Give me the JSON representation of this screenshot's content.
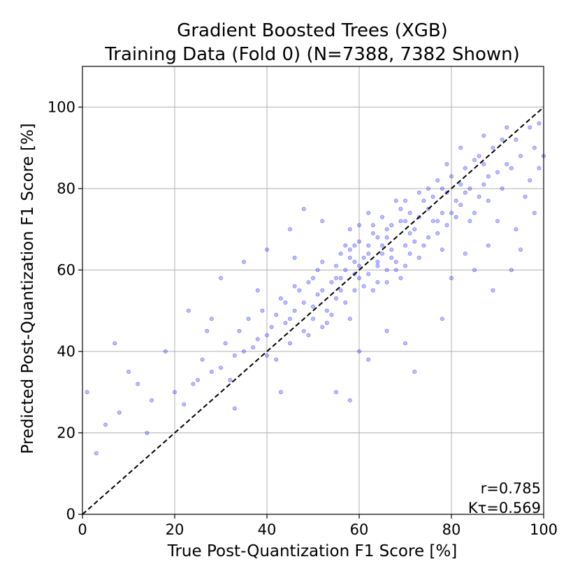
{
  "chart_data": {
    "type": "scatter",
    "title": "Gradient Boosted Trees (XGB)",
    "subtitle": "Training Data (Fold 0) (N=7388, 7382 Shown)",
    "xlabel": "True Post-Quantization F1 Score [%]",
    "ylabel": "Predicted Post-Quantization F1 Score [%]",
    "xlim": [
      0,
      100
    ],
    "ylim": [
      0,
      110
    ],
    "xticks": [
      0,
      20,
      40,
      60,
      80,
      100
    ],
    "yticks": [
      0,
      20,
      40,
      60,
      80,
      100
    ],
    "grid": true,
    "reference_line": {
      "x": [
        0,
        100
      ],
      "y": [
        0,
        100
      ],
      "style": "dashed",
      "color": "#000000"
    },
    "annotations": [
      "r=0.785",
      "Kτ=0.569"
    ],
    "marker_color": "#0000ff",
    "marker_alpha": 0.25,
    "points": [
      [
        62,
        66
      ],
      [
        70,
        72
      ],
      [
        55,
        58
      ],
      [
        78,
        74
      ],
      [
        48,
        52
      ],
      [
        66,
        60
      ],
      [
        73,
        79
      ],
      [
        58,
        63
      ],
      [
        84,
        80
      ],
      [
        44,
        47
      ],
      [
        67,
        71
      ],
      [
        52,
        55
      ],
      [
        75,
        68
      ],
      [
        60,
        61
      ],
      [
        88,
        83
      ],
      [
        40,
        44
      ],
      [
        63,
        69
      ],
      [
        71,
        64
      ],
      [
        57,
        52
      ],
      [
        81,
        77
      ],
      [
        35,
        40
      ],
      [
        69,
        75
      ],
      [
        50,
        58
      ],
      [
        77,
        82
      ],
      [
        64,
        57
      ],
      [
        92,
        86
      ],
      [
        46,
        50
      ],
      [
        59,
        66
      ],
      [
        72,
        70
      ],
      [
        54,
        49
      ],
      [
        86,
        78
      ],
      [
        38,
        43
      ],
      [
        65,
        73
      ],
      [
        79,
        71
      ],
      [
        51,
        60
      ],
      [
        68,
        62
      ],
      [
        95,
        88
      ],
      [
        42,
        38
      ],
      [
        61,
        56
      ],
      [
        74,
        77
      ],
      [
        56,
        64
      ],
      [
        83,
        85
      ],
      [
        30,
        36
      ],
      [
        70,
        66
      ],
      [
        47,
        55
      ],
      [
        76,
        72
      ],
      [
        62,
        59
      ],
      [
        89,
        90
      ],
      [
        53,
        47
      ],
      [
        66,
        68
      ],
      [
        80,
        74
      ],
      [
        44,
        52
      ],
      [
        58,
        70
      ],
      [
        73,
        63
      ],
      [
        36,
        48
      ],
      [
        67,
        65
      ],
      [
        91,
        80
      ],
      [
        49,
        44
      ],
      [
        60,
        67
      ],
      [
        78,
        80
      ],
      [
        25,
        33
      ],
      [
        64,
        61
      ],
      [
        55,
        53
      ],
      [
        82,
        76
      ],
      [
        41,
        46
      ],
      [
        71,
        74
      ],
      [
        57,
        60
      ],
      [
        85,
        87
      ],
      [
        33,
        39
      ],
      [
        69,
        58
      ],
      [
        52,
        62
      ],
      [
        75,
        75
      ],
      [
        63,
        71
      ],
      [
        94,
        92
      ],
      [
        45,
        42
      ],
      [
        59,
        55
      ],
      [
        77,
        69
      ],
      [
        50,
        51
      ],
      [
        68,
        77
      ],
      [
        87,
        81
      ],
      [
        20,
        30
      ],
      [
        65,
        64
      ],
      [
        54,
        57
      ],
      [
        80,
        83
      ],
      [
        39,
        50
      ],
      [
        72,
        67
      ],
      [
        58,
        48
      ],
      [
        84,
        72
      ],
      [
        28,
        35
      ],
      [
        62,
        74
      ],
      [
        48,
        45
      ],
      [
        74,
        66
      ],
      [
        61,
        63
      ],
      [
        97,
        95
      ],
      [
        43,
        53
      ],
      [
        70,
        61
      ],
      [
        56,
        58
      ],
      [
        79,
        79
      ],
      [
        34,
        45
      ],
      [
        66,
        70
      ],
      [
        15,
        28
      ],
      [
        60,
        58
      ],
      [
        53,
        50
      ],
      [
        83,
        79
      ],
      [
        46,
        56
      ],
      [
        73,
        73
      ],
      [
        57,
        66
      ],
      [
        90,
        84
      ],
      [
        31,
        42
      ],
      [
        67,
        63
      ],
      [
        51,
        54
      ],
      [
        76,
        78
      ],
      [
        64,
        68
      ],
      [
        98,
        90
      ],
      [
        42,
        49
      ],
      [
        59,
        62
      ],
      [
        78,
        65
      ],
      [
        49,
        57
      ],
      [
        69,
        72
      ],
      [
        86,
        88
      ],
      [
        12,
        32
      ],
      [
        63,
        55
      ],
      [
        55,
        61
      ],
      [
        81,
        73
      ],
      [
        37,
        41
      ],
      [
        71,
        69
      ],
      [
        58,
        65
      ],
      [
        88,
        77
      ],
      [
        26,
        38
      ],
      [
        65,
        66
      ],
      [
        50,
        48
      ],
      [
        75,
        80
      ],
      [
        62,
        64
      ],
      [
        93,
        85
      ],
      [
        45,
        48
      ],
      [
        60,
        71
      ],
      [
        77,
        72
      ],
      [
        52,
        46
      ],
      [
        68,
        60
      ],
      [
        85,
        74
      ],
      [
        8,
        25
      ],
      [
        64,
        62
      ],
      [
        56,
        55
      ],
      [
        82,
        81
      ],
      [
        40,
        39
      ],
      [
        70,
        77
      ],
      [
        59,
        59
      ],
      [
        87,
        86
      ],
      [
        32,
        33
      ],
      [
        66,
        57
      ],
      [
        5,
        22
      ],
      [
        10,
        35
      ],
      [
        18,
        40
      ],
      [
        22,
        27
      ],
      [
        3,
        15
      ],
      [
        7,
        42
      ],
      [
        14,
        20
      ],
      [
        27,
        45
      ],
      [
        1,
        30
      ],
      [
        24,
        32
      ],
      [
        96,
        78
      ],
      [
        99,
        85
      ],
      [
        94,
        70
      ],
      [
        92,
        95
      ],
      [
        97,
        82
      ],
      [
        100,
        88
      ],
      [
        95,
        65
      ],
      [
        98,
        74
      ],
      [
        91,
        92
      ],
      [
        99,
        96
      ],
      [
        85,
        60
      ],
      [
        88,
        66
      ],
      [
        90,
        72
      ],
      [
        80,
        58
      ],
      [
        83,
        64
      ],
      [
        87,
        93
      ],
      [
        82,
        90
      ],
      [
        79,
        86
      ],
      [
        93,
        60
      ],
      [
        89,
        55
      ],
      [
        30,
        58
      ],
      [
        45,
        70
      ],
      [
        40,
        65
      ],
      [
        62,
        38
      ],
      [
        70,
        42
      ],
      [
        78,
        48
      ],
      [
        55,
        30
      ],
      [
        48,
        75
      ],
      [
        35,
        62
      ],
      [
        66,
        45
      ],
      [
        72,
        35
      ],
      [
        60,
        40
      ],
      [
        52,
        72
      ],
      [
        46,
        63
      ],
      [
        38,
        55
      ],
      [
        28,
        48
      ],
      [
        23,
        50
      ],
      [
        33,
        26
      ],
      [
        43,
        30
      ],
      [
        58,
        28
      ]
    ]
  }
}
